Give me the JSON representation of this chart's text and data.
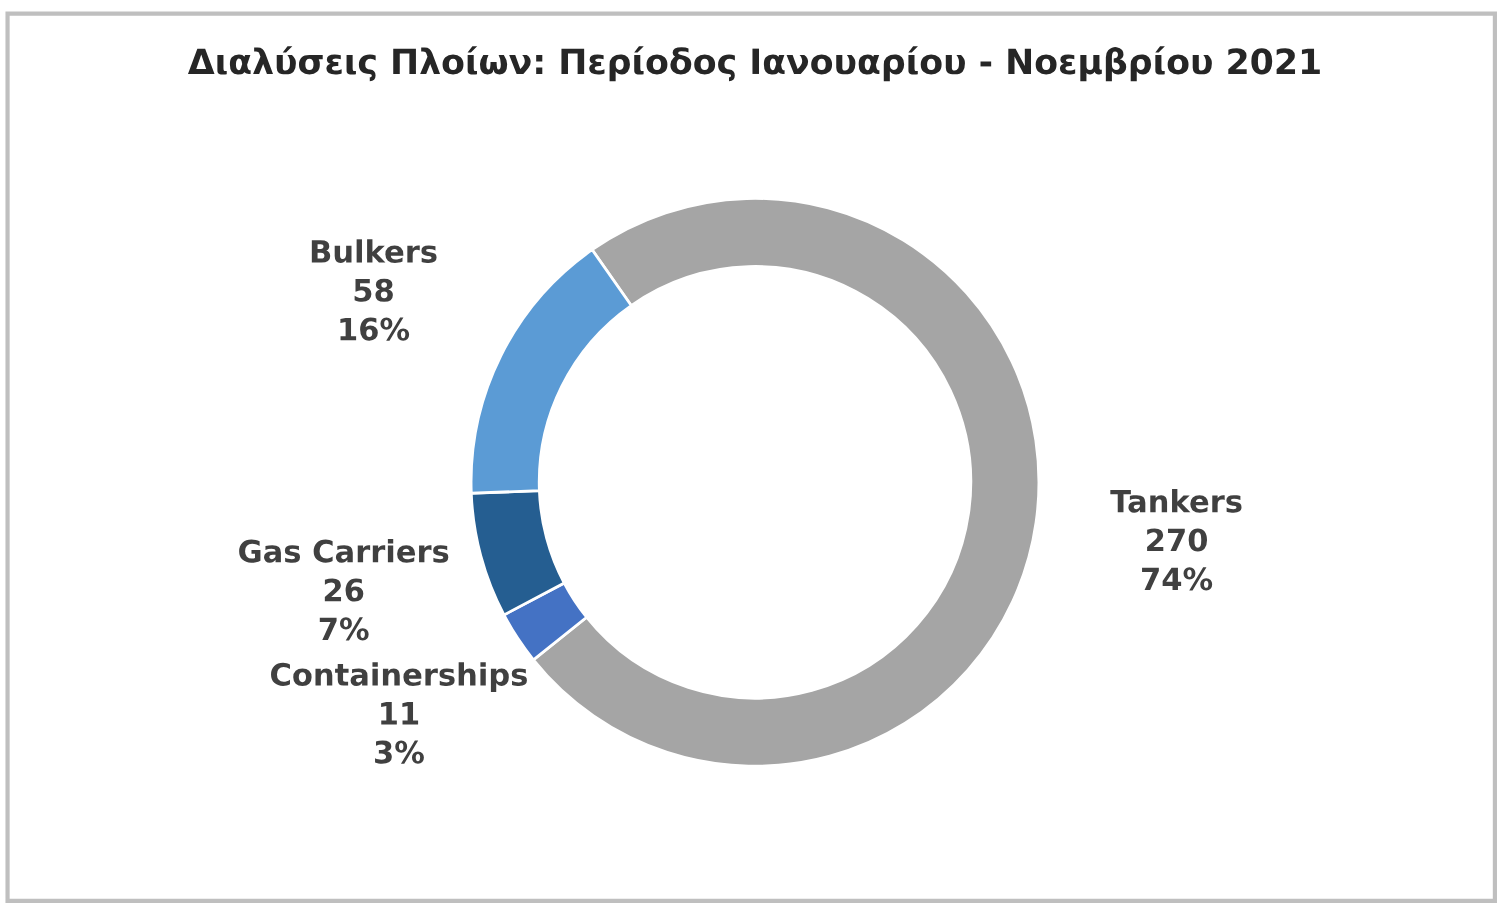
{
  "chart_data": {
    "type": "donut",
    "title": "Διαλύσεις Πλοίων: Περίοδος Ιανουαρίου - Νοεμβρίου 2021",
    "categories": [
      "Tankers",
      "Containerships",
      "Gas Carriers",
      "Bulkers"
    ],
    "values": [
      270,
      11,
      26,
      58
    ],
    "value_labels": [
      "270\n74%",
      "11\n3%",
      "26\n7%",
      "58\n16%"
    ],
    "colors": [
      "#a5a5a5",
      "#4472c4",
      "#255e91",
      "#5b9bd5"
    ],
    "legend": false
  }
}
